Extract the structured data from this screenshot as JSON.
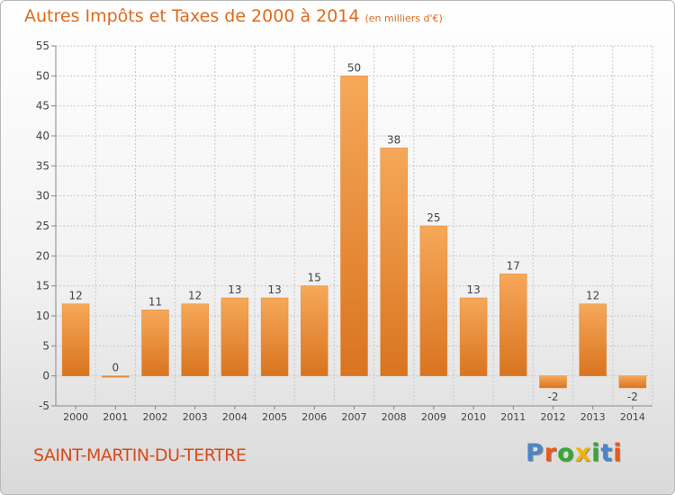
{
  "header": {
    "title": "Autres Impôts et Taxes de 2000 à 2014",
    "unit": "(en milliers d'€)"
  },
  "footer": {
    "town": "SAINT-MARTIN-DU-TERTRE",
    "logo_letters": [
      "P",
      "r",
      "o",
      "x",
      "i",
      "t",
      "i"
    ],
    "logo_colors": [
      "#4a86c8",
      "#e85a1e",
      "#3aa635",
      "#f0b400",
      "#3aa635",
      "#4a86c8",
      "#e85a1e"
    ]
  },
  "colors": {
    "bar_light": "#f6a859",
    "bar_dark": "#d9741f",
    "bar_stroke": "#e08a3c",
    "grid": "#c8c8c8",
    "axis_text": "#444444",
    "title": "#e06a1e",
    "town": "#d94a1a"
  },
  "chart_data": {
    "type": "bar",
    "categories": [
      "2000",
      "2001",
      "2002",
      "2003",
      "2004",
      "2005",
      "2006",
      "2007",
      "2008",
      "2009",
      "2010",
      "2011",
      "2012",
      "2013",
      "2014"
    ],
    "values": [
      12,
      0,
      11,
      12,
      13,
      13,
      15,
      50,
      38,
      25,
      13,
      17,
      -2,
      12,
      -2
    ],
    "ylim": [
      -5,
      55
    ],
    "yticks": [
      -5,
      0,
      5,
      10,
      15,
      20,
      25,
      30,
      35,
      40,
      45,
      50,
      55
    ],
    "grid": true,
    "data_labels": true
  }
}
